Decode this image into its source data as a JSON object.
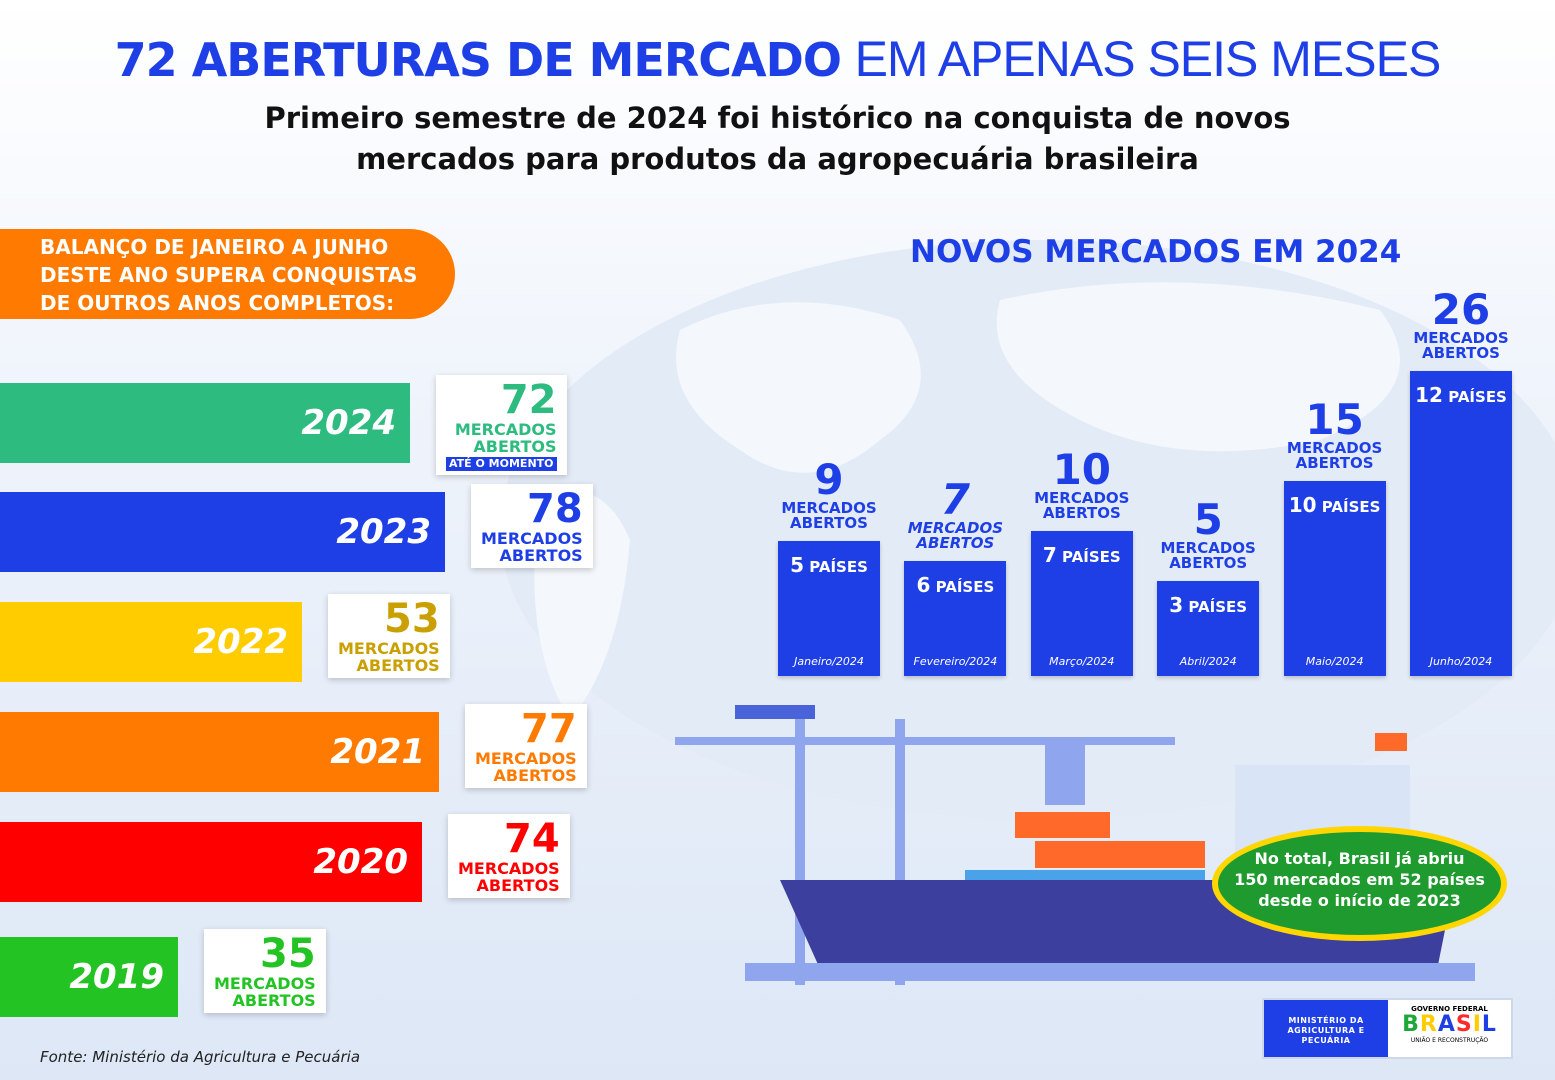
{
  "header": {
    "title_bold": "72 ABERTURAS DE MERCADO",
    "title_light": "EM APENAS SEIS MESES",
    "subtitle_line1": "Primeiro semestre de 2024 foi histórico na conquista de novos",
    "subtitle_line2": "mercados para produtos da agropecuária brasileira"
  },
  "balanco": {
    "line1": "BALANÇO DE JANEIRO A JUNHO",
    "line2": "DESTE ANO SUPERA CONQUISTAS",
    "line3": "DE OUTROS ANOS COMPLETOS:"
  },
  "chart_data": [
    {
      "type": "bar",
      "orientation": "horizontal",
      "categories": [
        "2024",
        "2023",
        "2022",
        "2021",
        "2020",
        "2019"
      ],
      "values": [
        72,
        78,
        53,
        77,
        74,
        35
      ],
      "value_label": "MERCADOS ABERTOS",
      "notes": {
        "2024": "ATÉ O MOMENTO"
      },
      "colors": [
        "#2dbb7f",
        "#1f3fe6",
        "#ffcc00",
        "#ff7a00",
        "#ff0000",
        "#22c322"
      ]
    },
    {
      "type": "bar",
      "title": "NOVOS MERCADOS EM 2024",
      "categories": [
        "Janeiro/2024",
        "Fevereiro/2024",
        "Março/2024",
        "Abril/2024",
        "Maio/2024",
        "Junho/2024"
      ],
      "values": [
        9,
        7,
        10,
        5,
        15,
        26
      ],
      "countries": [
        5,
        6,
        7,
        3,
        10,
        12
      ],
      "value_label": "MERCADOS ABERTOS",
      "countries_label": "PAÍSES",
      "color": "#1f3fe6"
    }
  ],
  "labels": {
    "mercados": "MERCADOS",
    "abertos": "ABERTOS",
    "ate": "ATÉ O MOMENTO",
    "paises": "PAÍSES"
  },
  "total": {
    "line1": "No total, Brasil já abriu",
    "line2": "150 mercados em 52 países",
    "line3": "desde o início de 2023"
  },
  "fonte": "Fonte: Ministério da Agricultura e Pecuária",
  "logo": {
    "ministerio": "MINISTÉRIO DA",
    "agricultura": "AGRICULTURA E",
    "pecuaria": "PECUÁRIA",
    "governo": "GOVERNO FEDERAL",
    "brasil": "BRASIL",
    "uniao": "UNIÃO E RECONSTRUÇÃO"
  }
}
